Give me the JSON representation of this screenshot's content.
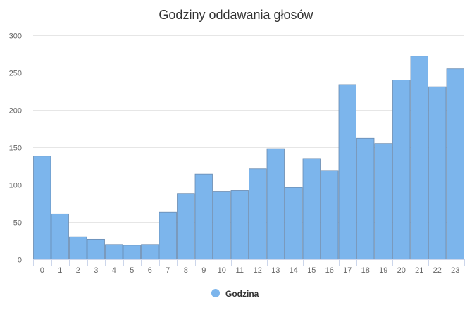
{
  "chart_data": {
    "type": "bar",
    "title": "Godziny oddawania głosów",
    "xlabel": "",
    "ylabel": "",
    "categories": [
      "0",
      "1",
      "2",
      "3",
      "4",
      "5",
      "6",
      "7",
      "8",
      "9",
      "10",
      "11",
      "12",
      "13",
      "14",
      "15",
      "16",
      "17",
      "18",
      "19",
      "20",
      "21",
      "22",
      "23"
    ],
    "series": [
      {
        "name": "Godzina",
        "values": [
          138,
          61,
          30,
          27,
          20,
          19,
          20,
          63,
          88,
          114,
          91,
          92,
          121,
          148,
          96,
          135,
          119,
          234,
          162,
          155,
          240,
          272,
          231,
          255
        ]
      }
    ],
    "ylim": [
      0,
      300
    ],
    "yticks": [
      0,
      50,
      100,
      150,
      200,
      250,
      300
    ],
    "grid": true,
    "legend": "bottom-center"
  },
  "colors": {
    "bar_fill": "#7cb5ec",
    "bar_stroke": "#6a8bb0",
    "grid": "#e6e6e6",
    "axis": "#ccd6eb"
  }
}
